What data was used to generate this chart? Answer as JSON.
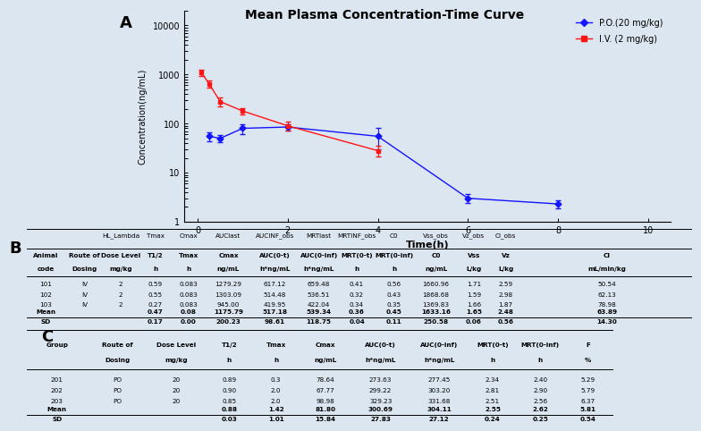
{
  "title": "Mean Plasma Concentration-Time Curve",
  "label_A": "A",
  "label_B": "B",
  "label_C": "C",
  "po_times": [
    0.25,
    0.5,
    1,
    2,
    4,
    6,
    8
  ],
  "po_values": [
    55,
    50,
    80,
    85,
    55,
    3.0,
    2.3
  ],
  "po_errors": [
    12,
    8,
    18,
    12,
    25,
    0.6,
    0.4
  ],
  "iv_times": [
    0.083,
    0.25,
    0.5,
    1,
    2,
    4
  ],
  "iv_values": [
    1100,
    650,
    280,
    180,
    90,
    28
  ],
  "iv_errors": [
    150,
    100,
    55,
    28,
    18,
    7
  ],
  "po_color": "#1414FF",
  "iv_color": "#FF1414",
  "legend_po": "P.O.(20 mg/kg)",
  "legend_iv": "I.V. (2 mg/kg)",
  "xlabel": "Time(h)",
  "ylabel": "Concentration(ng/mL)",
  "bg_color": "#dce6f1",
  "table_B_row1": [
    "",
    "",
    "HL_Lambda",
    "Tmax",
    "Cmax",
    "AUClast",
    "AUCINF_obs",
    "MRTlast",
    "MRTINF_obs",
    "C0",
    "Vss_obs",
    "Vz_obs",
    "Cl_obs"
  ],
  "table_B_row2a": [
    "Animal",
    "Route of",
    "Dose Level",
    "T1/2",
    "Tmax",
    "Cmax",
    "AUC(0-t)",
    "AUC(0-inf)",
    "MRT(0-t)",
    "MRT(0-inf)",
    "C0",
    "Vss",
    "Vz",
    "Cl"
  ],
  "table_B_row2b": [
    "code",
    "Dosing",
    "mg/kg",
    "h",
    "h",
    "ng/mL",
    "h*ng/mL",
    "h*ng/mL",
    "h",
    "h",
    "ng/mL",
    "L/kg",
    "L/kg",
    "mL/min/kg"
  ],
  "table_B_data": [
    [
      "101",
      "IV",
      "2",
      "0.59",
      "0.083",
      "1279.29",
      "617.12",
      "659.48",
      "0.41",
      "0.56",
      "1660.96",
      "1.71",
      "2.59",
      "50.54"
    ],
    [
      "102",
      "IV",
      "2",
      "0.55",
      "0.083",
      "1303.09",
      "514.48",
      "536.51",
      "0.32",
      "0.43",
      "1868.68",
      "1.59",
      "2.98",
      "62.13"
    ],
    [
      "103",
      "IV",
      "2",
      "0.27",
      "0.083",
      "945.00",
      "419.95",
      "422.04",
      "0.34",
      "0.35",
      "1369.83",
      "1.66",
      "1.87",
      "78.98"
    ]
  ],
  "table_B_mean": [
    "Mean",
    "",
    "",
    "0.47",
    "0.08",
    "1175.79",
    "517.18",
    "539.34",
    "0.36",
    "0.45",
    "1633.16",
    "1.65",
    "2.48",
    "63.89"
  ],
  "table_B_sd": [
    "SD",
    "",
    "",
    "0.17",
    "0.00",
    "200.23",
    "98.61",
    "118.75",
    "0.04",
    "0.11",
    "250.58",
    "0.06",
    "0.56",
    "14.30"
  ],
  "table_C_row1a": [
    "Group",
    "Route of",
    "Dose Level",
    "T1/2",
    "Tmax",
    "Cmax",
    "AUC(0-t)",
    "AUC(0-inf)",
    "MRT(0-t)",
    "MRT(0-inf)",
    "F"
  ],
  "table_C_row1b": [
    "",
    "Dosing",
    "mg/kg",
    "h",
    "h",
    "ng/mL",
    "h*ng/mL",
    "h*ng/mL",
    "h",
    "h",
    "%"
  ],
  "table_C_data": [
    [
      "201",
      "PO",
      "20",
      "0.89",
      "0.3",
      "78.64",
      "273.63",
      "277.45",
      "2.34",
      "2.40",
      "5.29"
    ],
    [
      "202",
      "PO",
      "20",
      "0.90",
      "2.0",
      "67.77",
      "299.22",
      "303.20",
      "2.81",
      "2.90",
      "5.79"
    ],
    [
      "203",
      "PO",
      "20",
      "0.85",
      "2.0",
      "98.98",
      "329.23",
      "331.68",
      "2.51",
      "2.56",
      "6.37"
    ]
  ],
  "table_C_mean": [
    "Mean",
    "",
    "",
    "0.88",
    "1.42",
    "81.80",
    "300.69",
    "304.11",
    "2.55",
    "2.62",
    "5.81"
  ],
  "table_C_sd": [
    "SD",
    "",
    "",
    "0.03",
    "1.01",
    "15.84",
    "27.83",
    "27.12",
    "0.24",
    "0.25",
    "0.54"
  ]
}
